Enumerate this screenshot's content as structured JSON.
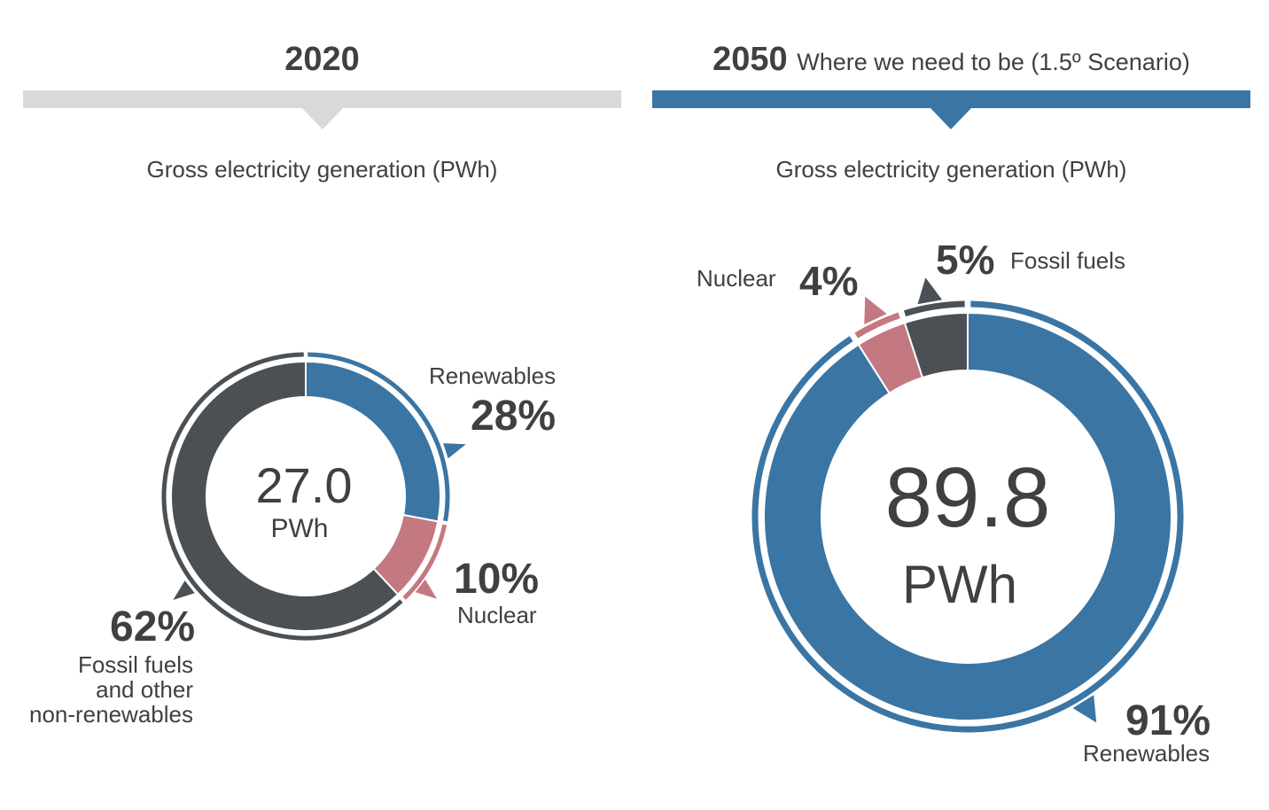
{
  "panels": {
    "left": {
      "year": "2020",
      "subtitle": "Gross electricity generation (PWh)",
      "bar_color": "#d9d9d9"
    },
    "right": {
      "year": "2050",
      "scenario": "Where we need to be (1.5º Scenario)",
      "subtitle": "Gross electricity generation (PWh)",
      "bar_color": "#3a75a3"
    }
  },
  "colors": {
    "renewables": "#3a75a3",
    "nuclear": "#c47880",
    "fossil": "#4b5054"
  },
  "chart_data": [
    {
      "type": "pie",
      "year": "2020",
      "title": "Gross electricity generation (PWh)",
      "total_value": "27.0",
      "total_unit": "PWh",
      "slices": [
        {
          "name": "Renewables",
          "value": 28,
          "value_label": "28%",
          "color": "#3a75a3"
        },
        {
          "name": "Nuclear",
          "value": 10,
          "value_label": "10%",
          "color": "#c47880"
        },
        {
          "name": "Fossil fuels and other non-renewables",
          "label_lines": [
            "Fossil fuels",
            "and other",
            "non-renewables"
          ],
          "value": 62,
          "value_label": "62%",
          "color": "#4b5054"
        }
      ]
    },
    {
      "type": "pie",
      "year": "2050",
      "title": "Gross electricity generation (PWh)",
      "total_value": "89.8",
      "total_unit": "PWh",
      "slices": [
        {
          "name": "Renewables",
          "value": 91,
          "value_label": "91%",
          "color": "#3a75a3"
        },
        {
          "name": "Nuclear",
          "value": 4,
          "value_label": "4%",
          "color": "#c47880"
        },
        {
          "name": "Fossil fuels",
          "value": 5,
          "value_label": "5%",
          "color": "#4b5054"
        }
      ]
    }
  ]
}
